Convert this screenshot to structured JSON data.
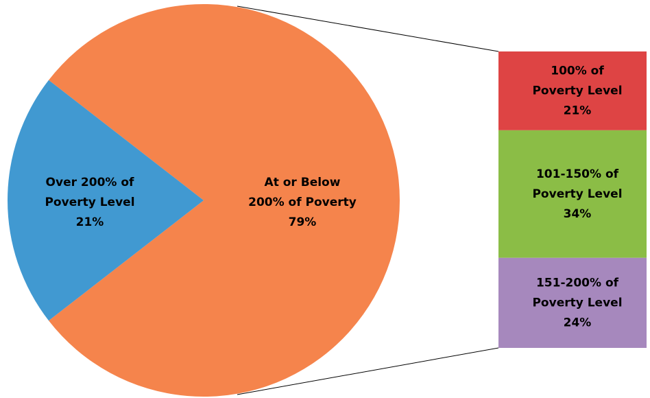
{
  "chart_data": {
    "type": "bar-of-pie",
    "title": "",
    "pie": {
      "slices": [
        {
          "label_lines": [
            "At or Below",
            "200% of Poverty"
          ],
          "percent_label": "79%",
          "value": 79,
          "color": "#f5844c"
        },
        {
          "label_lines": [
            "Over 200% of",
            "Poverty Level"
          ],
          "percent_label": "21%",
          "value": 21,
          "color": "#4199d1"
        }
      ],
      "expanded_slice": 0
    },
    "bar": {
      "segments": [
        {
          "label_lines": [
            "100% of",
            "Poverty Level"
          ],
          "percent_label": "21%",
          "value": 21,
          "color": "#de4444"
        },
        {
          "label_lines": [
            "101-150% of",
            "Poverty Level"
          ],
          "percent_label": "34%",
          "value": 34,
          "color": "#8bbd46"
        },
        {
          "label_lines": [
            "151-200% of",
            "Poverty Level"
          ],
          "percent_label": "24%",
          "value": 24,
          "color": "#a688bd"
        }
      ]
    },
    "legend": "none"
  }
}
